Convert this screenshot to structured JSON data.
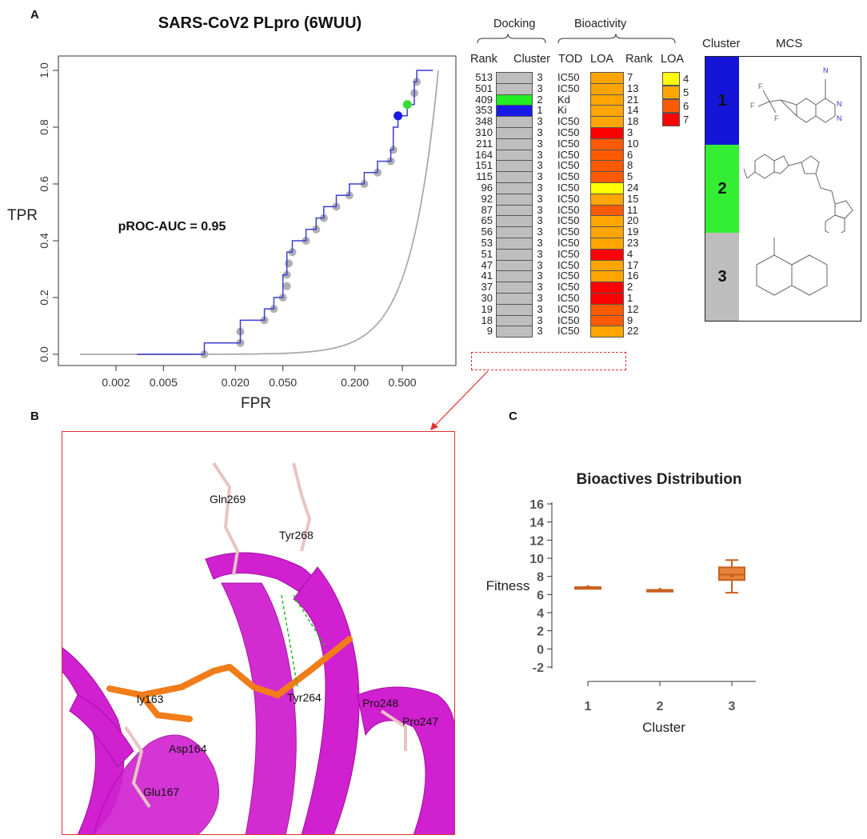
{
  "panels": {
    "a": "A",
    "b": "B",
    "c": "C"
  },
  "chart_data": [
    {
      "type": "line",
      "title": "SARS-CoV2 PLpro (6WUU)",
      "xlabel": "FPR",
      "ylabel": "TPR",
      "x_scale": "log",
      "x_ticks": [
        "0.002",
        "0.005",
        "0.020",
        "0.050",
        "0.200",
        "0.500"
      ],
      "x_tick_values": [
        0.002,
        0.005,
        0.02,
        0.05,
        0.2,
        0.5
      ],
      "y_ticks": [
        "0.0",
        "0.2",
        "0.4",
        "0.6",
        "0.8",
        "1.0"
      ],
      "y_tick_values": [
        0,
        0.2,
        0.4,
        0.6,
        0.8,
        1.0
      ],
      "annotation": "pROC-AUC = 0.95",
      "series": [
        {
          "color": "#3a3fcf",
          "points": [
            [
              0.003,
              0.0
            ],
            [
              0.011,
              0.0
            ],
            [
              0.011,
              0.04
            ],
            [
              0.022,
              0.04
            ],
            [
              0.022,
              0.12
            ],
            [
              0.035,
              0.12
            ],
            [
              0.035,
              0.16
            ],
            [
              0.042,
              0.16
            ],
            [
              0.042,
              0.2
            ],
            [
              0.05,
              0.2
            ],
            [
              0.05,
              0.28
            ],
            [
              0.054,
              0.28
            ],
            [
              0.054,
              0.36
            ],
            [
              0.06,
              0.36
            ],
            [
              0.06,
              0.4
            ],
            [
              0.078,
              0.4
            ],
            [
              0.078,
              0.44
            ],
            [
              0.095,
              0.44
            ],
            [
              0.095,
              0.48
            ],
            [
              0.11,
              0.48
            ],
            [
              0.11,
              0.52
            ],
            [
              0.14,
              0.52
            ],
            [
              0.14,
              0.56
            ],
            [
              0.18,
              0.56
            ],
            [
              0.18,
              0.6
            ],
            [
              0.24,
              0.6
            ],
            [
              0.24,
              0.64
            ],
            [
              0.31,
              0.64
            ],
            [
              0.31,
              0.68
            ],
            [
              0.4,
              0.68
            ],
            [
              0.4,
              0.72
            ],
            [
              0.42,
              0.72
            ],
            [
              0.42,
              0.8
            ],
            [
              0.46,
              0.8
            ],
            [
              0.46,
              0.84
            ],
            [
              0.55,
              0.84
            ],
            [
              0.55,
              0.88
            ],
            [
              0.63,
              0.88
            ],
            [
              0.63,
              0.96
            ],
            [
              0.66,
              0.96
            ],
            [
              0.66,
              1.0
            ],
            [
              0.9,
              1.0
            ]
          ]
        },
        {
          "color": "#aaaaaa",
          "function": "random-classifier"
        }
      ],
      "marker_points": [
        [
          0.011,
          0.0
        ],
        [
          0.022,
          0.04
        ],
        [
          0.022,
          0.08
        ],
        [
          0.035,
          0.12
        ],
        [
          0.042,
          0.16
        ],
        [
          0.05,
          0.2
        ],
        [
          0.054,
          0.24
        ],
        [
          0.054,
          0.28
        ],
        [
          0.056,
          0.32
        ],
        [
          0.06,
          0.36
        ],
        [
          0.078,
          0.4
        ],
        [
          0.095,
          0.44
        ],
        [
          0.11,
          0.48
        ],
        [
          0.14,
          0.52
        ],
        [
          0.18,
          0.56
        ],
        [
          0.24,
          0.6
        ],
        [
          0.31,
          0.64
        ],
        [
          0.4,
          0.68
        ],
        [
          0.42,
          0.72
        ],
        [
          0.63,
          0.92
        ],
        [
          0.66,
          0.96
        ]
      ],
      "highlight_points": [
        {
          "x": 0.46,
          "y": 0.84,
          "color": "#1a1ae6"
        },
        {
          "x": 0.55,
          "y": 0.88,
          "color": "#33dd33"
        }
      ]
    },
    {
      "type": "table",
      "group_headers": [
        "Docking",
        "Bioactivity"
      ],
      "columns": [
        "Rank",
        "Cluster",
        "TOD",
        "LOA",
        "Rank"
      ],
      "rows": [
        {
          "rank": "513",
          "cluster": "3",
          "tod": "IC50",
          "loa": 5,
          "brank": "7"
        },
        {
          "rank": "501",
          "cluster": "3",
          "tod": "IC50",
          "loa": 5,
          "brank": "13"
        },
        {
          "rank": "409",
          "cluster": "2",
          "tod": "Kd",
          "loa": 5,
          "brank": "21"
        },
        {
          "rank": "353",
          "cluster": "1",
          "tod": "Ki",
          "loa": 5,
          "brank": "14"
        },
        {
          "rank": "348",
          "cluster": "3",
          "tod": "IC50",
          "loa": 5,
          "brank": "18"
        },
        {
          "rank": "310",
          "cluster": "3",
          "tod": "IC50",
          "loa": 7,
          "brank": "3"
        },
        {
          "rank": "211",
          "cluster": "3",
          "tod": "IC50",
          "loa": 6,
          "brank": "10"
        },
        {
          "rank": "164",
          "cluster": "3",
          "tod": "IC50",
          "loa": 6,
          "brank": "6"
        },
        {
          "rank": "151",
          "cluster": "3",
          "tod": "IC50",
          "loa": 6,
          "brank": "8"
        },
        {
          "rank": "115",
          "cluster": "3",
          "tod": "IC50",
          "loa": 6,
          "brank": "5"
        },
        {
          "rank": "96",
          "cluster": "3",
          "tod": "IC50",
          "loa": 4,
          "brank": "24"
        },
        {
          "rank": "92",
          "cluster": "3",
          "tod": "IC50",
          "loa": 5,
          "brank": "15"
        },
        {
          "rank": "87",
          "cluster": "3",
          "tod": "IC50",
          "loa": 6,
          "brank": "11"
        },
        {
          "rank": "65",
          "cluster": "3",
          "tod": "IC50",
          "loa": 5,
          "brank": "20"
        },
        {
          "rank": "56",
          "cluster": "3",
          "tod": "IC50",
          "loa": 5,
          "brank": "19"
        },
        {
          "rank": "53",
          "cluster": "3",
          "tod": "IC50",
          "loa": 5,
          "brank": "23"
        },
        {
          "rank": "51",
          "cluster": "3",
          "tod": "IC50",
          "loa": 7,
          "brank": "4"
        },
        {
          "rank": "47",
          "cluster": "3",
          "tod": "IC50",
          "loa": 5,
          "brank": "17"
        },
        {
          "rank": "41",
          "cluster": "3",
          "tod": "IC50",
          "loa": 5,
          "brank": "16"
        },
        {
          "rank": "37",
          "cluster": "3",
          "tod": "IC50",
          "loa": 7,
          "brank": "2"
        },
        {
          "rank": "30",
          "cluster": "3",
          "tod": "IC50",
          "loa": 7,
          "brank": "1"
        },
        {
          "rank": "19",
          "cluster": "3",
          "tod": "IC50",
          "loa": 6,
          "brank": "12"
        },
        {
          "rank": "18",
          "cluster": "3",
          "tod": "IC50",
          "loa": 6,
          "brank": "9"
        },
        {
          "rank": "9",
          "cluster": "3",
          "tod": "IC50",
          "loa": 5,
          "brank": "22"
        }
      ],
      "cluster_colors": {
        "1": "#1919e6",
        "2": "#22ee22",
        "3": "#bebebe"
      },
      "loa_legend": {
        "title": "LOA",
        "levels": [
          {
            "label": "4",
            "color": "#ffff00"
          },
          {
            "label": "5",
            "color": "#ffa500"
          },
          {
            "label": "6",
            "color": "#ff5a00"
          },
          {
            "label": "7",
            "color": "#ff0000"
          }
        ]
      }
    },
    {
      "type": "box",
      "title": "Bioactives Distribution",
      "xlabel": "Cluster",
      "ylabel": "Fitness",
      "categories": [
        "1",
        "2",
        "3"
      ],
      "y_ticks": [
        "-2",
        "0",
        "2",
        "4",
        "6",
        "8",
        "10",
        "12",
        "14",
        "16"
      ],
      "y_tick_values": [
        -2,
        0,
        2,
        4,
        6,
        8,
        10,
        12,
        14,
        16
      ],
      "color": "#c8601e",
      "fill": "#e8833a",
      "boxes": [
        {
          "min": 6.8,
          "q1": 6.8,
          "median": 6.8,
          "q3": 6.8,
          "max": 6.8,
          "mean": 6.8
        },
        {
          "min": 6.5,
          "q1": 6.5,
          "median": 6.5,
          "q3": 6.5,
          "max": 6.5,
          "mean": 6.5
        },
        {
          "min": 6.2,
          "q1": 7.6,
          "median": 8.2,
          "q3": 9.0,
          "max": 9.8,
          "mean": 8.1
        }
      ]
    }
  ],
  "mcs": {
    "headers": [
      "Cluster",
      "MCS"
    ],
    "clusters": [
      {
        "label": "1",
        "color": "#1515d8"
      },
      {
        "label": "2",
        "color": "#33ee33"
      },
      {
        "label": "3",
        "color": "#bebebe"
      }
    ]
  },
  "structure": {
    "labels": [
      "Gln269",
      "Tyr268",
      "Tyr264",
      "Pro248",
      "Pro247",
      "Asp164",
      "Glu167",
      "ly163"
    ]
  }
}
